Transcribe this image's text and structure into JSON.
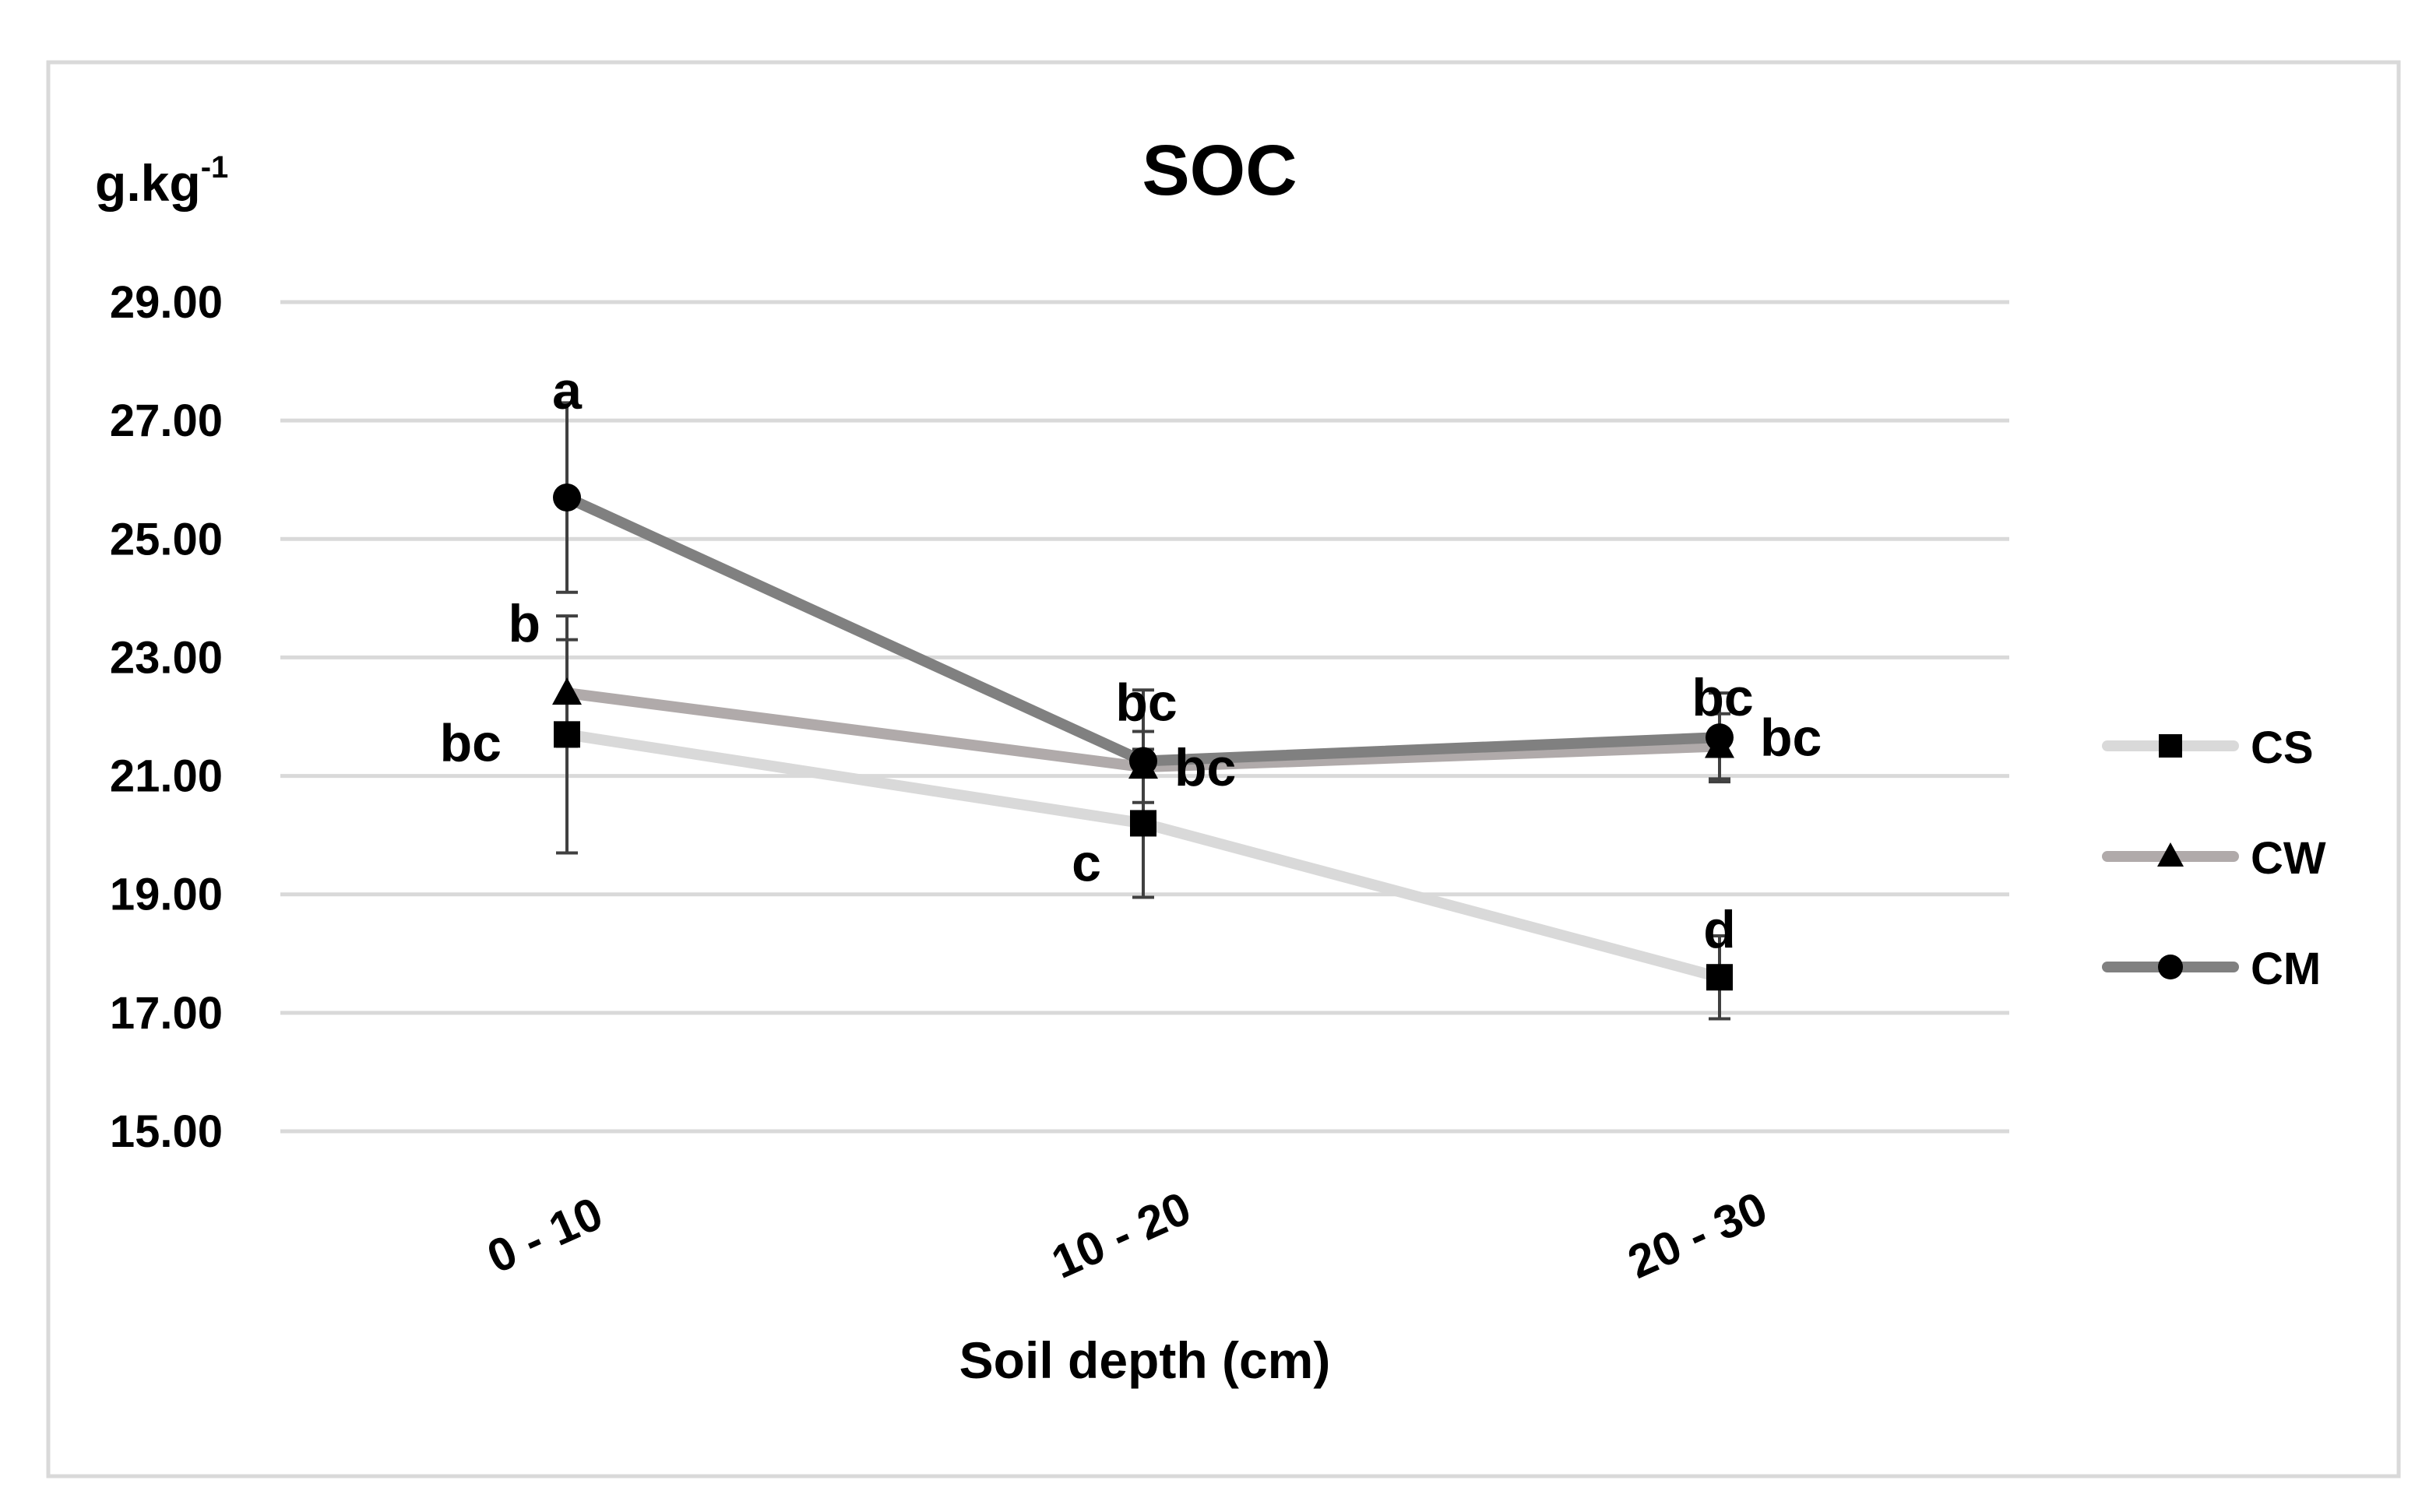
{
  "chart_data": {
    "type": "line",
    "title": "SOC",
    "ylabel": "g.kg",
    "ylabel_superscript": "-1",
    "xlabel": "Soil depth (cm)",
    "categories": [
      "0 - 10",
      "10 - 20",
      "20 - 30"
    ],
    "ylim": [
      15,
      29
    ],
    "yticks": [
      "15.00",
      "17.00",
      "19.00",
      "21.00",
      "23.00",
      "25.00",
      "27.00",
      "29.00"
    ],
    "grid": true,
    "legend_position": "right",
    "series": [
      {
        "name": "CS",
        "marker": "square",
        "color": "#d9d9d9",
        "values": [
          21.7,
          20.2,
          17.6
        ],
        "error": [
          2.0,
          1.25,
          0.7
        ],
        "labels": [
          "bc",
          "c",
          "d"
        ]
      },
      {
        "name": "CW",
        "marker": "triangle",
        "color": "#b0aaaa",
        "values": [
          22.4,
          21.15,
          21.5
        ],
        "error": [
          0.9,
          0.6,
          0.55
        ],
        "labels": [
          "b",
          "bc",
          "bc"
        ]
      },
      {
        "name": "CM",
        "marker": "circle",
        "color": "#808080",
        "values": [
          25.7,
          21.25,
          21.65
        ],
        "error": [
          1.6,
          1.2,
          0.75
        ],
        "labels": [
          "a",
          "bc",
          "bc"
        ]
      }
    ]
  }
}
